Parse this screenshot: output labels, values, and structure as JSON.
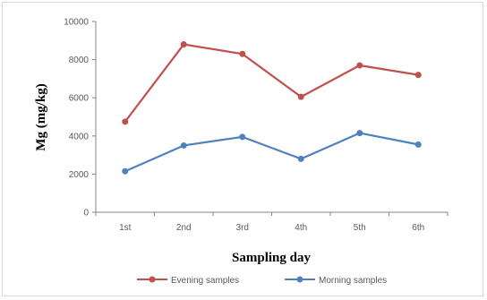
{
  "chart_data": {
    "type": "line",
    "title": "",
    "xlabel": "Sampling day",
    "ylabel": "Mg (mg/kg)",
    "categories": [
      "1st",
      "2nd",
      "3rd",
      "4th",
      "5th",
      "6th"
    ],
    "ylim": [
      0,
      10000
    ],
    "yticks": [
      0,
      2000,
      4000,
      6000,
      8000,
      10000
    ],
    "ytick_labels": [
      "0",
      "2000",
      "4000",
      "6000",
      "8000",
      "10000"
    ],
    "grid": false,
    "legend_position": "bottom",
    "series": [
      {
        "name": "Evening samples",
        "color": "#c0504d",
        "values": [
          4750,
          8800,
          8300,
          6050,
          7700,
          7200
        ]
      },
      {
        "name": "Morning samples",
        "color": "#4f81bd",
        "values": [
          2150,
          3500,
          3950,
          2800,
          4150,
          3550
        ]
      }
    ]
  }
}
